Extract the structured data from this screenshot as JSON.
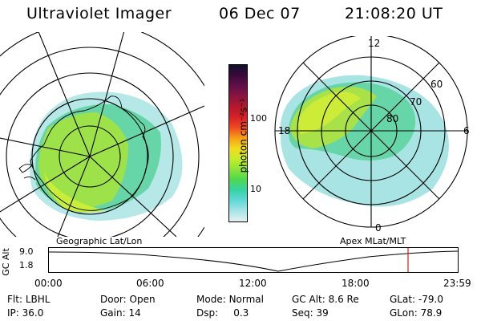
{
  "header": {
    "title": "Ultraviolet Imager",
    "date": "06 Dec 07",
    "time": "21:08:20 UT"
  },
  "colorbar": {
    "label": "photon cm⁻²s⁻¹",
    "ticks": [
      "100",
      "10"
    ],
    "colors": [
      "#101030",
      "#3a0a3a",
      "#60104a",
      "#8a1540",
      "#b4182c",
      "#d6202a",
      "#f04a20",
      "#f6a018",
      "#f2dc20",
      "#c6ec2a",
      "#8ce43a",
      "#4ed84e",
      "#36d2a6",
      "#62d8d8",
      "#a8e4e6",
      "#e4f0f2"
    ]
  },
  "left_map": {
    "caption": "Geographic Lat/Lon"
  },
  "right_map": {
    "caption": "Apex MLat/MLT",
    "mlt_labels": [
      "12",
      "18",
      "6",
      "0"
    ],
    "mlat_labels": [
      "60",
      "70",
      "80"
    ]
  },
  "altitude_panel": {
    "axis_label": "GC Alt",
    "yticks": [
      "9.0",
      "1.8"
    ],
    "xticks": [
      "00:00",
      "06:00",
      "12:00",
      "18:00",
      "23:59"
    ],
    "current_marker_color": "#cc2020"
  },
  "status": {
    "row1": [
      {
        "key": "Flt:",
        "value": "LBHL"
      },
      {
        "key": "Door:",
        "value": "Open"
      },
      {
        "key": "Mode:",
        "value": "Normal"
      },
      {
        "key": "GC Alt:",
        "value": "8.6 Re"
      },
      {
        "key": "GLat:",
        "value": "-79.0"
      }
    ],
    "row2": [
      {
        "key": "IP:",
        "value": "36.0"
      },
      {
        "key": "Gain:",
        "value": "14"
      },
      {
        "key": "Dsp:",
        "value": "0.3"
      },
      {
        "key": "Seq:",
        "value": "39"
      },
      {
        "key": "GLon:",
        "value": "78.9"
      }
    ]
  }
}
